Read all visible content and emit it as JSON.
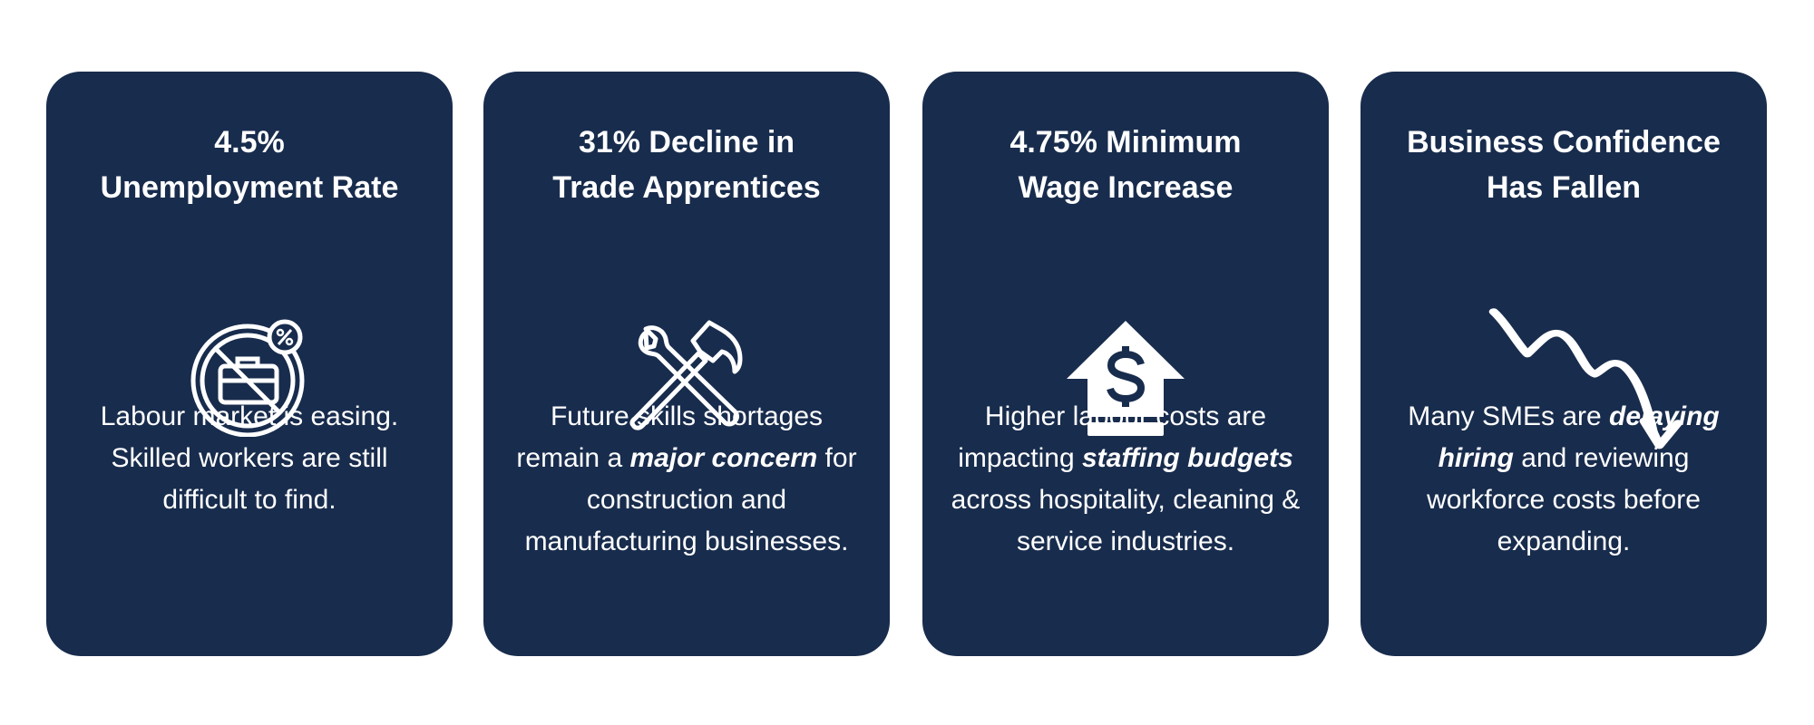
{
  "cards": [
    {
      "title": [
        "4.5%",
        "Unemployment Rate"
      ],
      "body": [
        {
          "text": "Labour market is easing. Skilled workers are still difficult to find."
        }
      ]
    },
    {
      "title": [
        "31% Decline in",
        "Trade Apprentices"
      ],
      "body": [
        {
          "text": "Future skills shortages remain a "
        },
        {
          "text": "major concern",
          "bold": true
        },
        {
          "text": " for construction and manufacturing businesses."
        }
      ]
    },
    {
      "title": [
        "4.75% Minimum",
        "Wage Increase"
      ],
      "body": [
        {
          "text": "Higher labour costs are impacting "
        },
        {
          "text": "staffing budgets",
          "bold": true
        },
        {
          "text": " across hospitality, cleaning & service industries."
        }
      ]
    },
    {
      "title": [
        "Business Confidence",
        "Has Fallen"
      ],
      "body": [
        {
          "text": "Many SMEs are "
        },
        {
          "text": "delaying hiring",
          "bold": true
        },
        {
          "text": " and reviewing workforce costs before expanding."
        }
      ]
    }
  ]
}
